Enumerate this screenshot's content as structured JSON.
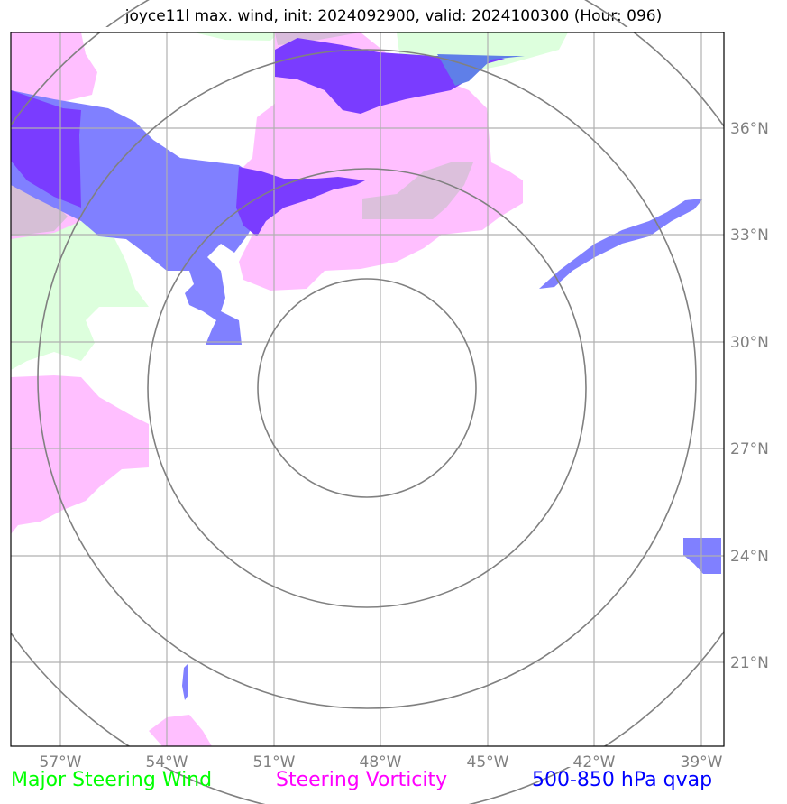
{
  "title": "joyce11l max. wind, init: 2024092900, valid: 2024100300 (Hour: 096)",
  "map": {
    "lon_ticks": [
      "57°W",
      "54°W",
      "51°W",
      "48°W",
      "45°W",
      "42°W",
      "39°W"
    ],
    "lat_ticks": [
      "36°N",
      "33°N",
      "30°N",
      "27°N",
      "24°N",
      "21°N"
    ],
    "range_rings": 4,
    "grid": true
  },
  "legend": {
    "wind": "Major Steering Wind",
    "vorticity": "Steering Vorticity",
    "qvap": "500-850 hPa qvap"
  },
  "colors": {
    "wind": "#00ff00",
    "vorticity": "#ff00ff",
    "qvap": "#0000ff",
    "wind_fill": "#ddffdd",
    "vorticity_fill": "#ffbfff",
    "qvap_fill": "#8080ff",
    "qvap_strong_fill": "#7a3cff",
    "grid": "#b0b0b0",
    "ring": "#808080"
  }
}
